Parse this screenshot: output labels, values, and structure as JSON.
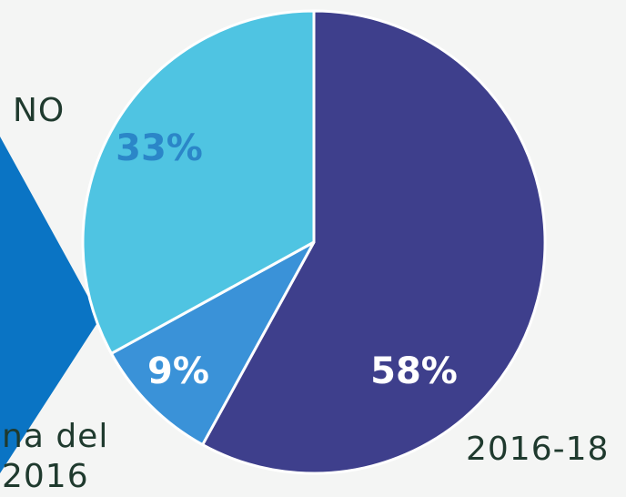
{
  "chart_data": {
    "type": "pie",
    "categories": [
      "2016-18",
      "na del\n2016",
      "NO"
    ],
    "values": [
      58,
      9,
      33
    ],
    "value_labels": [
      "58%",
      "9%",
      "33%"
    ],
    "colors": [
      "#3e3f8c",
      "#3a92d8",
      "#4fc4e2"
    ],
    "value_label_colors": [
      "#ffffff",
      "#ffffff",
      "#2b86c8"
    ]
  }
}
